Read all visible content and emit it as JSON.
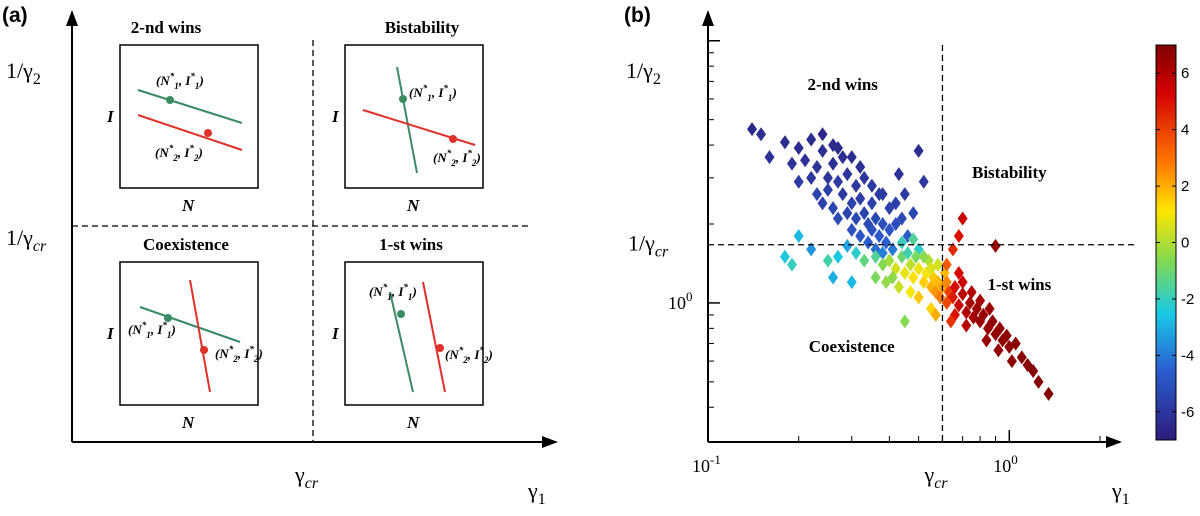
{
  "panel_a": {
    "tag": "(a)",
    "y_axis_label": "1/γ",
    "y_axis_sub": "2",
    "x_axis_label": "γ",
    "x_axis_sub": "1",
    "hline_label": "1/γ",
    "hline_sub": "cr",
    "vline_label": "γ",
    "vline_sub": "cr",
    "insets": [
      {
        "title": "2-nd wins",
        "ylabel": "I",
        "xlabel": "N",
        "pt1": "(N",
        "pt1_sup": "*",
        "pt1_sub": "1",
        "pt1_mid": ", I",
        "pt1_end": ")",
        "pt2": "(N",
        "pt2_sup": "*",
        "pt2_sub": "2",
        "pt2_mid": ", I",
        "pt2_end": ")"
      },
      {
        "title": "Bistability",
        "ylabel": "I",
        "xlabel": "N",
        "pt1": "(N",
        "pt1_sup": "*",
        "pt1_sub": "1",
        "pt1_mid": ", I",
        "pt1_end": ")",
        "pt2": "(N",
        "pt2_sup": "*",
        "pt2_sub": "2",
        "pt2_mid": ", I",
        "pt2_end": ")"
      },
      {
        "title": "Coexistence",
        "ylabel": "I",
        "xlabel": "N",
        "pt1": "(N",
        "pt1_sup": "*",
        "pt1_sub": "1",
        "pt1_mid": ", I",
        "pt1_end": ")",
        "pt2": "(N",
        "pt2_sup": "*",
        "pt2_sub": "2",
        "pt2_mid": ", I",
        "pt2_end": ")"
      },
      {
        "title": "1-st wins",
        "ylabel": "I",
        "xlabel": "N",
        "pt1": "(N",
        "pt1_sup": "*",
        "pt1_sub": "1",
        "pt1_mid": ", I",
        "pt1_end": ")",
        "pt2": "(N",
        "pt2_sup": "*",
        "pt2_sub": "2",
        "pt2_mid": ", I",
        "pt2_end": ")"
      }
    ],
    "colors": {
      "green": "#3a8a64",
      "red": "#e0302a"
    }
  },
  "chart_data": {
    "type": "scatter",
    "tag": "(b)",
    "xscale": "log",
    "yscale": "log",
    "xlim": [
      0.1,
      2.0
    ],
    "ylim": [
      0.3,
      12
    ],
    "x_ticks": [
      {
        "v": 0.1,
        "base": "10",
        "exp": "-1"
      },
      {
        "v": 1.0,
        "base": "10",
        "exp": "0"
      }
    ],
    "y_ticks": [
      {
        "v": 1.0,
        "base": "10",
        "exp": "0"
      }
    ],
    "gamma_cr": 0.6,
    "one_over_gamma_cr": 1.667,
    "xlabel": "γ",
    "xlabel_sub": "1",
    "ylabel": "1/γ",
    "ylabel_sub": "2",
    "vline_label": "γ",
    "vline_sub": "cr",
    "hline_label": "1/γ",
    "hline_sub": "cr",
    "region_labels": [
      {
        "text": "2-nd wins",
        "x": 0.28,
        "y": 6.5
      },
      {
        "text": "Bistability",
        "x": 1.0,
        "y": 3.0
      },
      {
        "text": "1-st wins",
        "x": 1.08,
        "y": 1.12
      },
      {
        "text": "Coexistence",
        "x": 0.3,
        "y": 0.65
      }
    ],
    "colorbar": {
      "min": -7,
      "max": 7,
      "ticks": [
        6,
        4,
        2,
        0,
        -2,
        -4,
        -6
      ],
      "tick_labels": [
        "6",
        "4",
        "2",
        "0",
        "-2",
        "-4",
        "-6"
      ]
    },
    "series": [
      {
        "values": "scatter points generated around the anti-diagonal; color = score from -7 (blue) to 7 (red)"
      }
    ],
    "points": [
      [
        0.14,
        4.6,
        -6.5
      ],
      [
        0.15,
        4.4,
        -6.3
      ],
      [
        0.16,
        3.6,
        -6.2
      ],
      [
        0.18,
        4.1,
        -6.4
      ],
      [
        0.19,
        3.4,
        -6.1
      ],
      [
        0.2,
        3.9,
        -6.3
      ],
      [
        0.2,
        2.9,
        -5.8
      ],
      [
        0.21,
        3.5,
        -6.2
      ],
      [
        0.22,
        4.2,
        -6.4
      ],
      [
        0.22,
        3.0,
        -6.0
      ],
      [
        0.23,
        2.6,
        -5.5
      ],
      [
        0.23,
        3.3,
        -6.1
      ],
      [
        0.24,
        3.8,
        -6.3
      ],
      [
        0.24,
        2.4,
        -5.6
      ],
      [
        0.25,
        3.0,
        -6.0
      ],
      [
        0.25,
        2.7,
        -5.7
      ],
      [
        0.26,
        3.4,
        -6.2
      ],
      [
        0.26,
        2.3,
        -5.4
      ],
      [
        0.27,
        2.9,
        -5.9
      ],
      [
        0.27,
        2.1,
        -5.2
      ],
      [
        0.28,
        3.6,
        -6.3
      ],
      [
        0.28,
        2.6,
        -5.8
      ],
      [
        0.29,
        2.2,
        -5.5
      ],
      [
        0.29,
        3.1,
        -6.1
      ],
      [
        0.3,
        2.4,
        -5.6
      ],
      [
        0.3,
        1.9,
        -5.0
      ],
      [
        0.31,
        2.8,
        -5.9
      ],
      [
        0.31,
        2.1,
        -5.4
      ],
      [
        0.32,
        2.5,
        -5.7
      ],
      [
        0.32,
        1.8,
        -4.8
      ],
      [
        0.33,
        2.2,
        -5.5
      ],
      [
        0.33,
        3.0,
        -6.0
      ],
      [
        0.34,
        2.0,
        -5.2
      ],
      [
        0.34,
        1.7,
        -4.6
      ],
      [
        0.35,
        2.4,
        -5.6
      ],
      [
        0.35,
        1.9,
        -5.0
      ],
      [
        0.36,
        2.1,
        -5.3
      ],
      [
        0.36,
        1.6,
        -4.2
      ],
      [
        0.37,
        1.8,
        -4.8
      ],
      [
        0.37,
        2.6,
        -5.8
      ],
      [
        0.38,
        2.0,
        -5.1
      ],
      [
        0.38,
        1.55,
        -3.8
      ],
      [
        0.39,
        1.7,
        -4.5
      ],
      [
        0.4,
        1.9,
        -4.9
      ],
      [
        0.4,
        2.3,
        -5.5
      ],
      [
        0.41,
        1.6,
        -4.0
      ],
      [
        0.42,
        2.0,
        -5.1
      ],
      [
        0.43,
        3.1,
        -6.1
      ],
      [
        0.45,
        2.6,
        -5.8
      ],
      [
        0.46,
        1.8,
        -4.7
      ],
      [
        0.48,
        2.2,
        -5.4
      ],
      [
        0.5,
        3.8,
        -6.3
      ],
      [
        0.52,
        2.9,
        -5.9
      ],
      [
        0.3,
        3.6,
        -6.3
      ],
      [
        0.32,
        3.3,
        -6.2
      ],
      [
        0.27,
        3.9,
        -6.4
      ],
      [
        0.24,
        4.4,
        -6.5
      ],
      [
        0.26,
        4.0,
        -6.4
      ],
      [
        0.35,
        2.8,
        -5.9
      ],
      [
        0.38,
        2.6,
        -5.8
      ],
      [
        0.42,
        2.4,
        -5.6
      ],
      [
        0.44,
        2.1,
        -5.3
      ],
      [
        0.2,
        1.8,
        -2.8
      ],
      [
        0.18,
        1.5,
        -2.4
      ],
      [
        0.19,
        1.4,
        -2.0
      ],
      [
        0.22,
        1.6,
        -3.5
      ],
      [
        0.25,
        1.45,
        -1.8
      ],
      [
        0.27,
        1.5,
        -2.5
      ],
      [
        0.29,
        1.65,
        -3.2
      ],
      [
        0.31,
        1.55,
        -2.2
      ],
      [
        0.33,
        1.45,
        -1.2
      ],
      [
        0.36,
        1.5,
        -1.5
      ],
      [
        0.38,
        1.4,
        -0.6
      ],
      [
        0.4,
        1.45,
        -0.2
      ],
      [
        0.42,
        1.35,
        0.5
      ],
      [
        0.44,
        1.5,
        -1.0
      ],
      [
        0.45,
        1.3,
        0.8
      ],
      [
        0.47,
        1.4,
        0.2
      ],
      [
        0.48,
        1.25,
        1.2
      ],
      [
        0.5,
        1.35,
        0.9
      ],
      [
        0.52,
        1.2,
        1.5
      ],
      [
        0.53,
        1.3,
        1.0
      ],
      [
        0.55,
        1.15,
        2.0
      ],
      [
        0.56,
        1.25,
        1.6
      ],
      [
        0.57,
        1.1,
        2.4
      ],
      [
        0.58,
        1.2,
        1.8
      ],
      [
        0.59,
        1.05,
        2.8
      ],
      [
        0.6,
        1.15,
        2.2
      ],
      [
        0.46,
        1.55,
        -1.8
      ],
      [
        0.5,
        1.6,
        -2.2
      ],
      [
        0.54,
        1.45,
        0.0
      ],
      [
        0.41,
        1.25,
        -0.5
      ],
      [
        0.43,
        1.15,
        0.3
      ],
      [
        0.47,
        1.1,
        1.0
      ],
      [
        0.5,
        1.05,
        1.6
      ],
      [
        0.49,
        1.5,
        -0.8
      ],
      [
        0.55,
        1.35,
        0.6
      ],
      [
        0.36,
        1.25,
        -0.8
      ],
      [
        0.39,
        1.2,
        -0.4
      ],
      [
        0.3,
        1.2,
        -2.8
      ],
      [
        0.26,
        1.25,
        -3.0
      ],
      [
        0.45,
        0.85,
        -0.6
      ],
      [
        0.55,
        0.95,
        1.4
      ],
      [
        0.57,
        0.9,
        2.0
      ],
      [
        0.52,
        1.5,
        -0.5
      ],
      [
        0.48,
        1.75,
        -1.5
      ],
      [
        0.44,
        1.7,
        -2.0
      ],
      [
        0.58,
        1.4,
        0.5
      ],
      [
        0.61,
        1.3,
        1.8
      ],
      [
        0.62,
        1.2,
        2.6
      ],
      [
        0.63,
        1.1,
        4.0
      ],
      [
        0.65,
        1.05,
        4.8
      ],
      [
        0.66,
        1.15,
        5.2
      ],
      [
        0.68,
        0.98,
        5.5
      ],
      [
        0.7,
        1.08,
        5.8
      ],
      [
        0.72,
        0.92,
        6.0
      ],
      [
        0.74,
        1.0,
        6.2
      ],
      [
        0.76,
        0.88,
        6.3
      ],
      [
        0.78,
        0.95,
        6.4
      ],
      [
        0.8,
        0.85,
        6.5
      ],
      [
        0.82,
        0.9,
        6.5
      ],
      [
        0.85,
        0.8,
        6.5
      ],
      [
        0.88,
        0.85,
        6.6
      ],
      [
        0.9,
        0.76,
        6.6
      ],
      [
        0.93,
        0.8,
        6.6
      ],
      [
        0.95,
        0.72,
        6.7
      ],
      [
        0.98,
        0.75,
        6.7
      ],
      [
        1.0,
        0.68,
        6.7
      ],
      [
        1.05,
        0.7,
        6.8
      ],
      [
        1.1,
        0.62,
        6.8
      ],
      [
        1.15,
        0.58,
        6.8
      ],
      [
        1.2,
        0.55,
        6.9
      ],
      [
        1.25,
        0.5,
        6.9
      ],
      [
        1.35,
        0.45,
        6.9
      ],
      [
        0.7,
        1.2,
        5.5
      ],
      [
        0.75,
        1.1,
        6.0
      ],
      [
        0.8,
        1.02,
        6.2
      ],
      [
        0.66,
        0.9,
        5.0
      ],
      [
        0.72,
        0.82,
        5.8
      ],
      [
        0.84,
        0.72,
        6.4
      ],
      [
        0.92,
        0.66,
        6.6
      ],
      [
        1.02,
        0.6,
        6.7
      ],
      [
        0.68,
        1.3,
        5.2
      ],
      [
        0.62,
        1.4,
        3.5
      ],
      [
        0.65,
        1.6,
        4.5
      ],
      [
        0.68,
        1.8,
        5.0
      ],
      [
        0.7,
        2.1,
        5.5
      ],
      [
        0.9,
        1.65,
        6.5
      ],
      [
        0.62,
        1.0,
        3.8
      ],
      [
        0.64,
        0.85,
        4.2
      ],
      [
        0.86,
        0.95,
        6.4
      ]
    ]
  }
}
